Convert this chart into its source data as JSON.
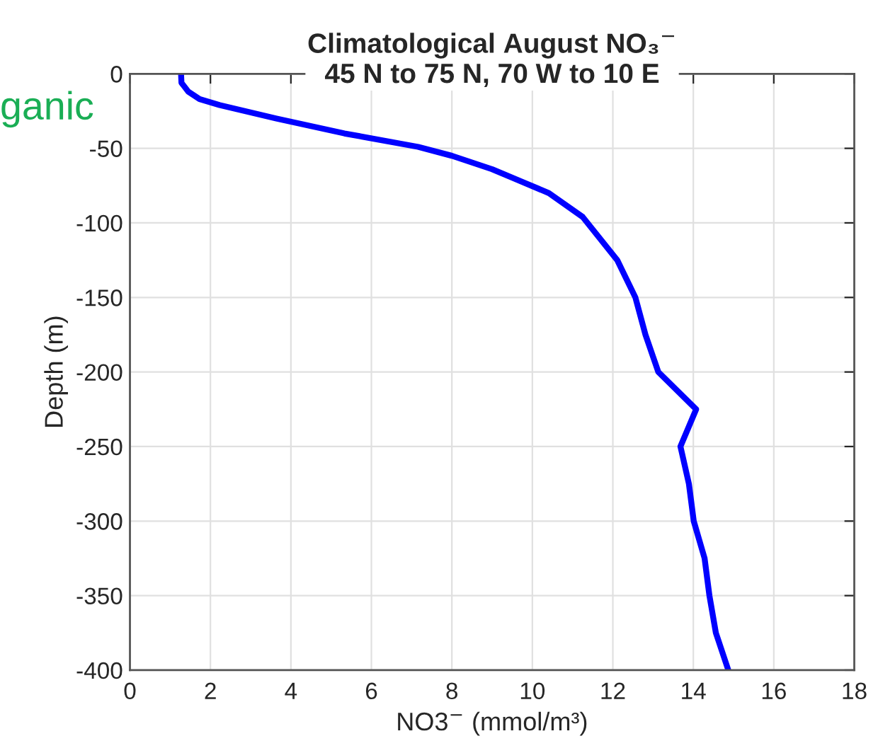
{
  "chart_data": {
    "type": "line",
    "title": "Climatological August NO₃$^{−}$\n45 N to 75 N, 70 W to 10 E",
    "xlabel": "NO3$^{−}$ (mmol/m³)",
    "ylabel": "Depth (m)",
    "annotations": [
      "ganic"
    ],
    "series": [
      {
        "color": "#0000ff",
        "x": [
          1.27,
          1.28,
          1.45,
          1.73,
          2.23,
          3.64,
          5.33,
          7.16,
          8.0,
          9.0,
          10.41,
          11.25,
          12.11,
          12.56,
          12.81,
          13.13,
          14.07,
          13.68,
          13.89,
          14.01,
          14.28,
          14.4,
          14.56,
          14.87
        ],
        "values": [
          0,
          -6,
          -12,
          -17,
          -21,
          -30,
          -40,
          -49,
          -55,
          -64,
          -80,
          -96,
          -125,
          -150,
          -175,
          -200,
          -225,
          -250,
          -275,
          -300,
          -325,
          -350,
          -375,
          -400
        ]
      }
    ],
    "xlim": [
      0,
      18
    ],
    "xticks": [
      0,
      2,
      4,
      6,
      8,
      10,
      12,
      14,
      16,
      18
    ],
    "ylim": [
      -400,
      0
    ],
    "yticks": [
      -400,
      -350,
      -300,
      -250,
      -200,
      -150,
      -100,
      -50,
      0
    ],
    "grid": true,
    "line_style": "solid",
    "marker": "none"
  }
}
